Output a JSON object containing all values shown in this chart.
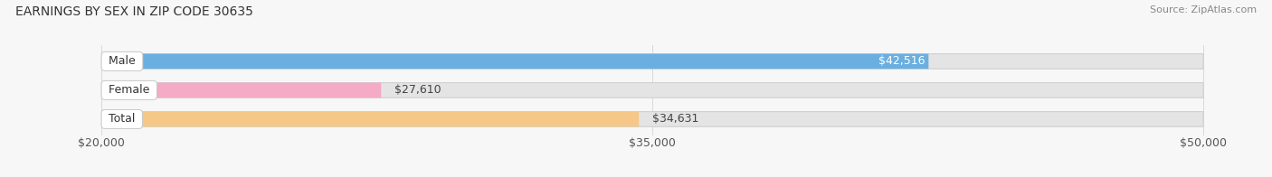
{
  "title": "EARNINGS BY SEX IN ZIP CODE 30635",
  "source": "Source: ZipAtlas.com",
  "categories": [
    "Male",
    "Female",
    "Total"
  ],
  "values": [
    42516,
    27610,
    34631
  ],
  "value_labels": [
    "$42,516",
    "$27,610",
    "$34,631"
  ],
  "bar_colors": [
    "#6aafe0",
    "#f5aac5",
    "#f5c888"
  ],
  "bar_track_color": "#e4e4e4",
  "bar_track_edge": "#d0d0d0",
  "xmin": 20000,
  "xmax": 50000,
  "xticks": [
    20000,
    35000,
    50000
  ],
  "xticklabels": [
    "$20,000",
    "$35,000",
    "$50,000"
  ],
  "background_color": "#f7f7f7",
  "title_fontsize": 10,
  "source_fontsize": 8,
  "label_fontsize": 9,
  "value_fontsize": 9,
  "tick_fontsize": 9,
  "value_inside": [
    true,
    false,
    false
  ]
}
